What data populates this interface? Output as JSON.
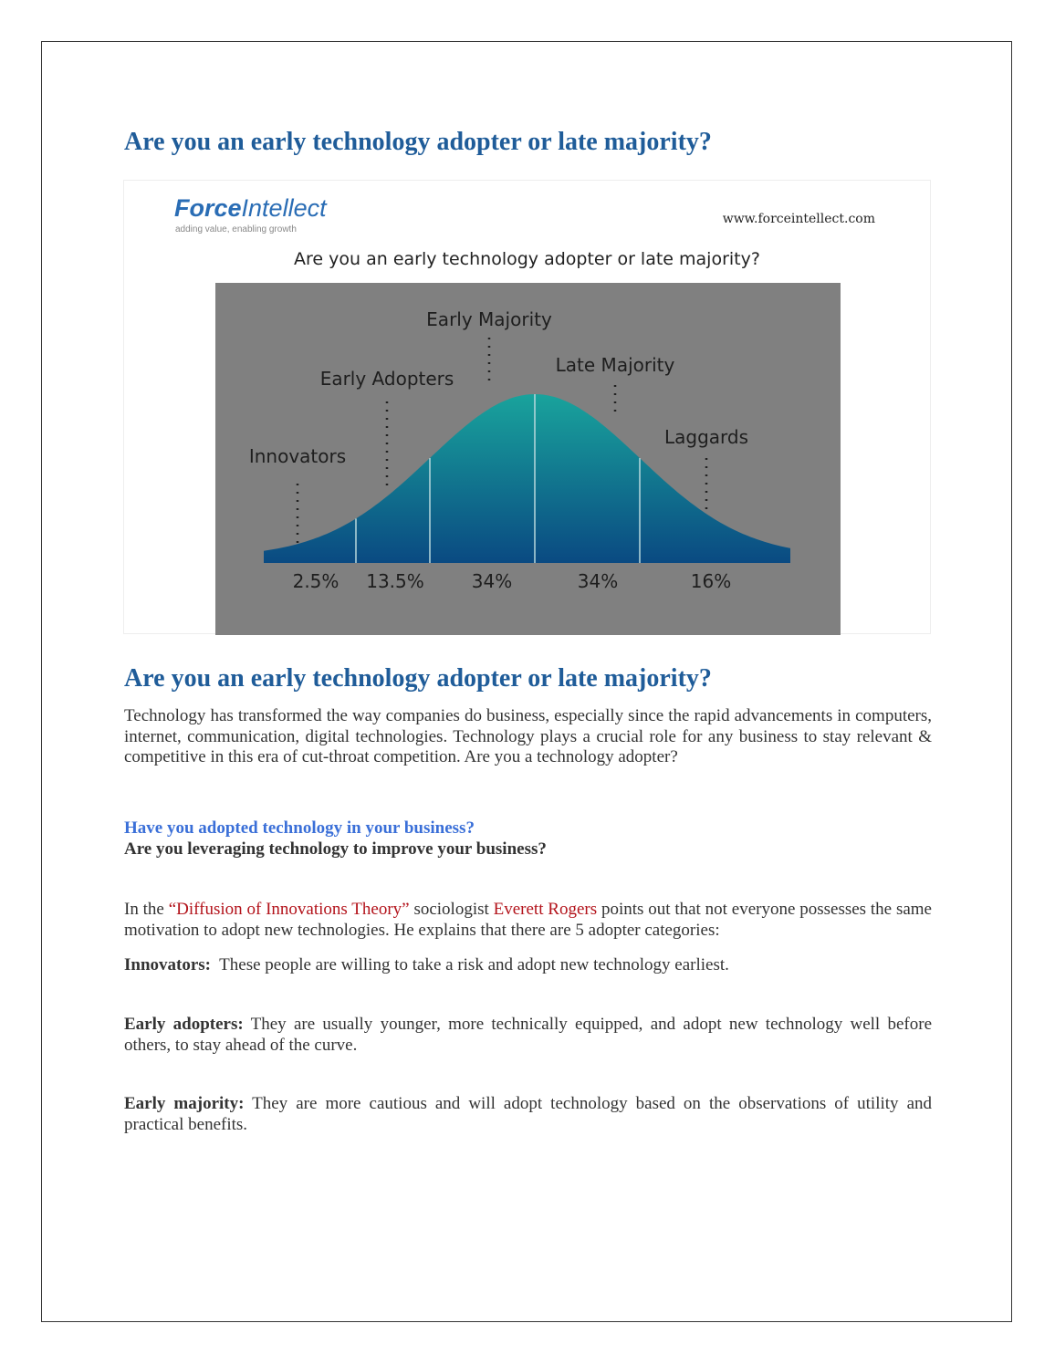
{
  "title": "Are you an early technology adopter or late majority?",
  "figure": {
    "brand_bold": "Force",
    "brand_light": "Intellect",
    "tagline": "adding value, enabling growth",
    "url": "www.forceintellect.com",
    "heading": "Are you an early technology adopter or late majority?",
    "segments": [
      {
        "label": "Innovators",
        "share": "2.5%"
      },
      {
        "label": "Early Adopters",
        "share": "13.5%"
      },
      {
        "label": "Early Majority",
        "share": "34%"
      },
      {
        "label": "Late Majority",
        "share": "34%"
      },
      {
        "label": "Laggards",
        "share": "16%"
      }
    ]
  },
  "article": {
    "heading": "Are you an early technology adopter or late majority?",
    "intro": "Technology has transformed the way companies do business, especially since the rapid advancements in computers, internet, communication, digital technologies. Technology plays a crucial role for any business to stay relevant & competitive in this era of cut-throat competition. Are you a technology adopter?",
    "question1": "Have you adopted technology in your business?",
    "question2": "Are you leveraging technology to improve your business?",
    "theory": [
      "In the ",
      "“Diffusion of Innovations Theory”",
      " sociologist ",
      "Everett Rogers",
      " points out that not everyone possesses the same motivation to adopt new technologies. He explains that there are 5 adopter categories:"
    ],
    "definitions": [
      {
        "term": "Innovators:",
        "text": "  These people are willing to take a risk and adopt new technology earliest."
      },
      {
        "term": "Early adopters:",
        "text": " They are usually younger, more technically equipped, and adopt new technology well before others, to stay ahead of the curve."
      },
      {
        "term": "Early majority:",
        "text": " They are more cautious and will adopt technology based on the observations of utility and practical benefits."
      }
    ]
  }
}
